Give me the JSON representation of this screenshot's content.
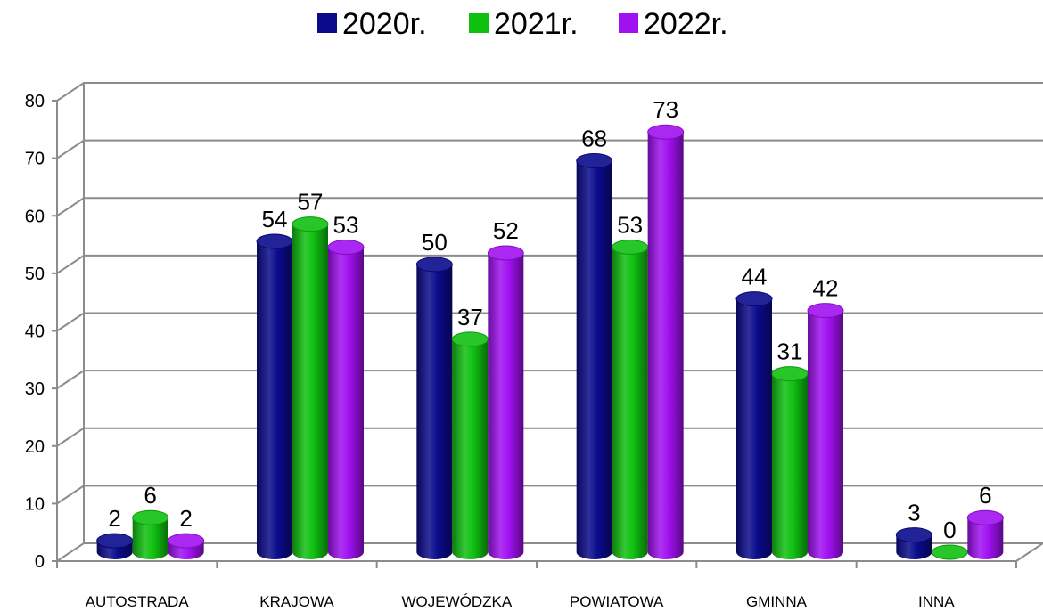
{
  "chart_data": {
    "type": "bar",
    "categories": [
      "AUTOSTRADA",
      "KRAJOWA",
      "WOJEWÓDZKA",
      "POWIATOWA",
      "GMINNA",
      "INNA"
    ],
    "series": [
      {
        "name": "2020r.",
        "color": "#0a0a8c",
        "values": [
          2,
          54,
          50,
          68,
          44,
          3
        ]
      },
      {
        "name": "2021r.",
        "color": "#10c010",
        "values": [
          6,
          57,
          37,
          53,
          31,
          0
        ]
      },
      {
        "name": "2022r.",
        "color": "#a010f0",
        "values": [
          2,
          53,
          52,
          73,
          42,
          6
        ]
      }
    ],
    "yticks": [
      "0",
      "10",
      "20",
      "30",
      "40",
      "50",
      "60",
      "70",
      "80"
    ],
    "ylim": [
      0,
      80
    ],
    "grid": true,
    "legend": "top-center",
    "style": "3d-cylinder"
  }
}
